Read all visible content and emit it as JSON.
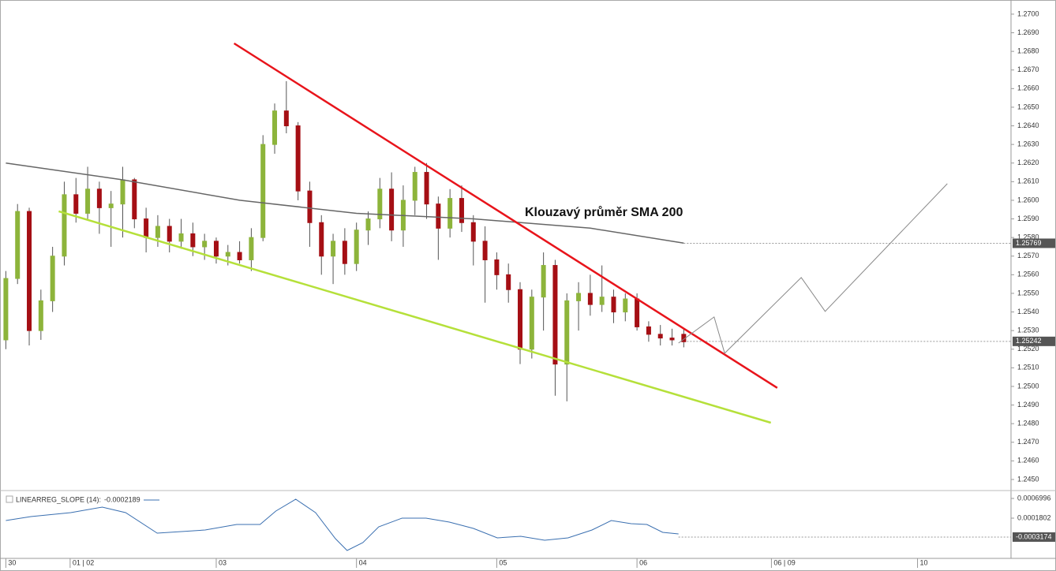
{
  "chart_data": [
    {
      "type": "candlestick",
      "x": [
        0,
        2,
        4,
        6,
        8,
        10,
        12,
        14,
        16,
        18,
        20,
        22,
        24,
        26,
        28,
        30,
        32,
        34,
        36,
        38,
        40,
        42,
        44,
        46,
        48,
        50,
        52,
        54,
        56,
        58,
        60,
        62,
        64,
        66,
        68,
        70,
        72,
        74,
        76,
        78,
        80,
        82,
        84,
        86,
        88,
        90,
        92,
        94,
        96,
        98,
        100,
        102,
        104,
        106,
        108,
        110,
        112,
        114,
        116
      ],
      "open": [
        1.2525,
        1.2558,
        1.2594,
        1.253,
        1.2546,
        1.257,
        1.2603,
        1.2593,
        1.2606,
        1.2596,
        1.2598,
        1.2611,
        1.259,
        1.258,
        1.2586,
        1.2578,
        1.2582,
        1.2575,
        1.2578,
        1.257,
        1.2572,
        1.2568,
        1.258,
        1.263,
        1.2648,
        1.264,
        1.2605,
        1.2588,
        1.257,
        1.2578,
        1.2566,
        1.2584,
        1.259,
        1.2606,
        1.2584,
        1.26,
        1.2615,
        1.2598,
        1.2585,
        1.2601,
        1.2588,
        1.2578,
        1.2568,
        1.256,
        1.2552,
        1.252,
        1.2548,
        1.2565,
        1.2512,
        1.2546,
        1.255,
        1.2544,
        1.2548,
        1.254,
        1.2547,
        1.2532,
        1.2528,
        1.2526,
        1.2528
      ],
      "high": [
        1.2562,
        1.2598,
        1.2596,
        1.2552,
        1.2575,
        1.261,
        1.2612,
        1.2618,
        1.261,
        1.2605,
        1.2618,
        1.2612,
        1.2596,
        1.2592,
        1.259,
        1.259,
        1.2588,
        1.2582,
        1.258,
        1.2576,
        1.2578,
        1.2585,
        1.2635,
        1.2652,
        1.2664,
        1.2642,
        1.261,
        1.2592,
        1.2582,
        1.2585,
        1.2588,
        1.2594,
        1.2612,
        1.2615,
        1.2608,
        1.2618,
        1.262,
        1.2602,
        1.2606,
        1.2608,
        1.2592,
        1.2586,
        1.2572,
        1.2566,
        1.2556,
        1.2552,
        1.2572,
        1.2568,
        1.255,
        1.2556,
        1.256,
        1.2565,
        1.2552,
        1.255,
        1.255,
        1.2535,
        1.2533,
        1.2531,
        1.2531
      ],
      "low": [
        1.252,
        1.2555,
        1.2522,
        1.2525,
        1.254,
        1.2565,
        1.2588,
        1.259,
        1.2582,
        1.2575,
        1.258,
        1.2585,
        1.2572,
        1.2575,
        1.2572,
        1.2574,
        1.257,
        1.2568,
        1.2566,
        1.2565,
        1.2566,
        1.2562,
        1.2578,
        1.2625,
        1.2636,
        1.26,
        1.2575,
        1.256,
        1.2555,
        1.256,
        1.2562,
        1.2576,
        1.2585,
        1.2578,
        1.2575,
        1.2592,
        1.259,
        1.2568,
        1.258,
        1.2583,
        1.2565,
        1.2545,
        1.2552,
        1.2545,
        1.2512,
        1.2515,
        1.253,
        1.2495,
        1.2492,
        1.253,
        1.2538,
        1.254,
        1.2534,
        1.2535,
        1.253,
        1.2524,
        1.2522,
        1.2522,
        1.2521
      ],
      "close": [
        1.2558,
        1.2594,
        1.253,
        1.2546,
        1.257,
        1.2603,
        1.2593,
        1.2606,
        1.2596,
        1.2598,
        1.2611,
        1.259,
        1.258,
        1.2586,
        1.2578,
        1.2582,
        1.2575,
        1.2578,
        1.257,
        1.2572,
        1.2568,
        1.258,
        1.263,
        1.2648,
        1.264,
        1.2605,
        1.2588,
        1.257,
        1.2578,
        1.2566,
        1.2584,
        1.259,
        1.2606,
        1.2584,
        1.26,
        1.2615,
        1.2598,
        1.2585,
        1.2601,
        1.2588,
        1.2578,
        1.2568,
        1.256,
        1.2552,
        1.252,
        1.2548,
        1.2565,
        1.2512,
        1.2546,
        1.255,
        1.2544,
        1.2548,
        1.254,
        1.2547,
        1.2532,
        1.2528,
        1.2526,
        1.2525,
        1.2524
      ],
      "up_color": "#8db43b",
      "down_color": "#a50f14",
      "xlim": [
        -1,
        172
      ],
      "xticks": [
        {
          "value": 0,
          "label": "30"
        },
        {
          "value": 11,
          "label": "01 | 02"
        },
        {
          "value": 36,
          "label": "03"
        },
        {
          "value": 60,
          "label": "04"
        },
        {
          "value": 84,
          "label": "05"
        },
        {
          "value": 108,
          "label": "06"
        },
        {
          "value": 131,
          "label": "06 | 09"
        },
        {
          "value": 156,
          "label": "10"
        }
      ],
      "ylim": [
        1.24449,
        1.27076
      ],
      "yticks": [
        {
          "value": 1.245,
          "label": "1.2450"
        },
        {
          "value": 1.246,
          "label": "1.2460"
        },
        {
          "value": 1.247,
          "label": "1.2470"
        },
        {
          "value": 1.248,
          "label": "1.2480"
        },
        {
          "value": 1.249,
          "label": "1.2490"
        },
        {
          "value": 1.25,
          "label": "1.2500"
        },
        {
          "value": 1.251,
          "label": "1.2510"
        },
        {
          "value": 1.252,
          "label": "1.2520"
        },
        {
          "value": 1.253,
          "label": "1.2530"
        },
        {
          "value": 1.254,
          "label": "1.2540"
        },
        {
          "value": 1.255,
          "label": "1.2550"
        },
        {
          "value": 1.256,
          "label": "1.2560"
        },
        {
          "value": 1.257,
          "label": "1.2570"
        },
        {
          "value": 1.258,
          "label": "1.2580"
        },
        {
          "value": 1.259,
          "label": "1.2590"
        },
        {
          "value": 1.26,
          "label": "1.2600"
        },
        {
          "value": 1.261,
          "label": "1.2610"
        },
        {
          "value": 1.262,
          "label": "1.2620"
        },
        {
          "value": 1.263,
          "label": "1.2630"
        },
        {
          "value": 1.264,
          "label": "1.2640"
        },
        {
          "value": 1.265,
          "label": "1.2650"
        },
        {
          "value": 1.266,
          "label": "1.2660"
        },
        {
          "value": 1.267,
          "label": "1.2670"
        },
        {
          "value": 1.268,
          "label": "1.2680"
        },
        {
          "value": 1.269,
          "label": "1.2690"
        },
        {
          "value": 1.27,
          "label": "1.2700"
        }
      ],
      "lines": [
        {
          "x": [
            0,
            20,
            40,
            60,
            80,
            100,
            116
          ],
          "values": [
            1.262,
            1.2611,
            1.26,
            1.2593,
            1.259,
            1.2585,
            1.2577
          ],
          "color": "#666666",
          "width": 1.5
        },
        {
          "x": [
            39.05,
            132.0
          ],
          "values": [
            1.26843,
            1.24992
          ],
          "color": "#e8141b",
          "width": 2.5
        },
        {
          "x": [
            9.05,
            130.9
          ],
          "values": [
            1.25941,
            1.24805
          ],
          "color": "#b5e03a",
          "width": 2.5
        },
        {
          "x": [
            115.1,
            121.2,
            123,
            136.1,
            140.2,
            161.1
          ],
          "values": [
            1.25233,
            1.25373,
            1.25178,
            1.25585,
            1.25403,
            1.26089
          ],
          "color": "#888888",
          "width": 1
        }
      ],
      "annotations": [
        "Klouzavý průměr SMA 200"
      ],
      "price_markers": [
        1.25769,
        1.25242
      ]
    },
    {
      "type": "line",
      "name": "LINEARREG_SLOPE (14):",
      "last_value": -0.0002189,
      "x": [
        0,
        4.3,
        11.1,
        16.5,
        20.5,
        25.9,
        34.1,
        39.5,
        43.5,
        46.2,
        49.6,
        53,
        56.4,
        58.4,
        61.1,
        63.8,
        67.8,
        71.9,
        75.9,
        80,
        84.1,
        88.1,
        92.2,
        96.2,
        100.3,
        103.6,
        107,
        109.7,
        112.4,
        115.1
      ],
      "values": [
        0.000118,
        0.000222,
        0.000326,
        0.000471,
        0.000326,
        -0.000214,
        -0.000131,
        1.4e-05,
        1.4e-05,
        0.000367,
        0.000679,
        0.000326,
        -0.00036,
        -0.000671,
        -0.000464,
        -4.8e-05,
        0.00018,
        0.00018,
        7.6e-05,
        -9e-05,
        -0.000339,
        -0.000298,
        -0.000401,
        -0.000339,
        -0.000131,
        0.000118,
        3.5e-05,
        1.4e-05,
        -0.000194,
        -0.000235
      ],
      "color": "#3a6fb0",
      "xlim": [
        -1,
        172
      ],
      "ylim": [
        -0.000879,
        0.000845
      ],
      "yticks": [
        0.0006996,
        0.0001802
      ],
      "price_markers": [
        -0.0003174
      ]
    }
  ]
}
